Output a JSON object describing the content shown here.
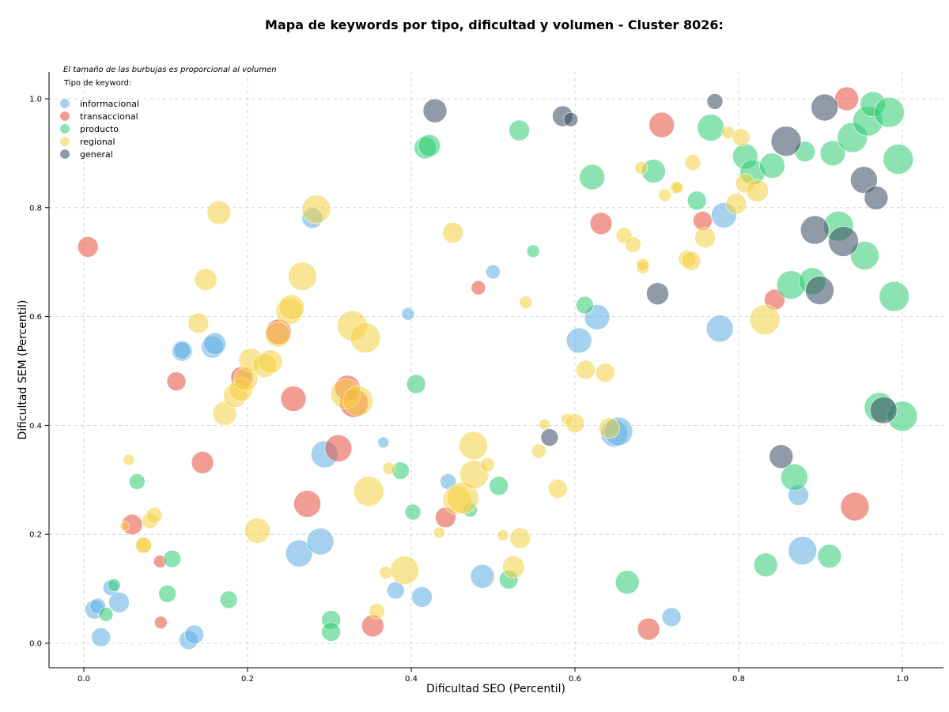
{
  "chart_data": {
    "type": "scatter",
    "title": "Mapa de keywords por tipo, dificultad y volumen - Cluster 8026:",
    "xlabel": "Dificultad SEO (Percentil)",
    "ylabel": "Dificultad SEM (Percentil)",
    "annotation": "El tamaño de las burbujas es proporcional al volumen",
    "legend_title": "Tipo de keyword:",
    "legend_position": "top-left",
    "grid": true,
    "xlim": [
      -0.045,
      1.05
    ],
    "ylim": [
      -0.045,
      1.05
    ],
    "xticks": [
      "0.0",
      "0.2",
      "0.4",
      "0.6",
      "0.8",
      "1.0"
    ],
    "yticks": [
      "0.0",
      "0.2",
      "0.4",
      "0.6",
      "0.8",
      "1.0"
    ],
    "colors": {
      "informacional": "#5dade2",
      "transaccional": "#e74c3c",
      "producto": "#2ecc71",
      "regional": "#f4d03f",
      "general": "#34495e"
    },
    "series": [
      {
        "name": "informacional",
        "points": [
          [
            0.013,
            0.062,
            12
          ],
          [
            0.017,
            0.068,
            10
          ],
          [
            0.021,
            0.011,
            12
          ],
          [
            0.033,
            0.102,
            10
          ],
          [
            0.043,
            0.075,
            13
          ],
          [
            0.12,
            0.537,
            13
          ],
          [
            0.12,
            0.538,
            11
          ],
          [
            0.157,
            0.544,
            14
          ],
          [
            0.16,
            0.55,
            14
          ],
          [
            0.128,
            0.006,
            12
          ],
          [
            0.135,
            0.016,
            12
          ],
          [
            0.263,
            0.165,
            17
          ],
          [
            0.279,
            0.781,
            13
          ],
          [
            0.289,
            0.187,
            17
          ],
          [
            0.294,
            0.347,
            17
          ],
          [
            0.366,
            0.369,
            7
          ],
          [
            0.381,
            0.097,
            11
          ],
          [
            0.396,
            0.605,
            8
          ],
          [
            0.413,
            0.085,
            13
          ],
          [
            0.445,
            0.297,
            10
          ],
          [
            0.487,
            0.123,
            15
          ],
          [
            0.5,
            0.682,
            9
          ],
          [
            0.605,
            0.556,
            16
          ],
          [
            0.627,
            0.599,
            16
          ],
          [
            0.648,
            0.385,
            17
          ],
          [
            0.653,
            0.389,
            18
          ],
          [
            0.718,
            0.048,
            12
          ],
          [
            0.777,
            0.578,
            17
          ],
          [
            0.782,
            0.786,
            16
          ],
          [
            0.873,
            0.272,
            13
          ],
          [
            0.878,
            0.17,
            18
          ]
        ]
      },
      {
        "name": "transaccional",
        "points": [
          [
            0.005,
            0.728,
            13
          ],
          [
            0.059,
            0.218,
            13
          ],
          [
            0.093,
            0.15,
            8
          ],
          [
            0.094,
            0.038,
            8
          ],
          [
            0.113,
            0.481,
            12
          ],
          [
            0.145,
            0.332,
            14
          ],
          [
            0.193,
            0.488,
            14
          ],
          [
            0.238,
            0.572,
            16
          ],
          [
            0.256,
            0.449,
            16
          ],
          [
            0.273,
            0.256,
            17
          ],
          [
            0.311,
            0.358,
            17
          ],
          [
            0.322,
            0.469,
            16
          ],
          [
            0.33,
            0.441,
            18
          ],
          [
            0.353,
            0.032,
            14
          ],
          [
            0.442,
            0.231,
            13
          ],
          [
            0.482,
            0.653,
            9
          ],
          [
            0.632,
            0.771,
            14
          ],
          [
            0.69,
            0.026,
            14
          ],
          [
            0.706,
            0.952,
            16
          ],
          [
            0.756,
            0.776,
            12
          ],
          [
            0.844,
            0.631,
            13
          ],
          [
            0.932,
            1.0,
            15
          ],
          [
            0.942,
            0.251,
            18
          ]
        ]
      },
      {
        "name": "producto",
        "points": [
          [
            0.027,
            0.053,
            9
          ],
          [
            0.037,
            0.107,
            8
          ],
          [
            0.065,
            0.297,
            10
          ],
          [
            0.102,
            0.091,
            11
          ],
          [
            0.108,
            0.155,
            11
          ],
          [
            0.177,
            0.08,
            11
          ],
          [
            0.302,
            0.043,
            12
          ],
          [
            0.302,
            0.021,
            12
          ],
          [
            0.387,
            0.317,
            11
          ],
          [
            0.402,
            0.241,
            10
          ],
          [
            0.406,
            0.476,
            12
          ],
          [
            0.417,
            0.91,
            14
          ],
          [
            0.422,
            0.914,
            14
          ],
          [
            0.472,
            0.245,
            9
          ],
          [
            0.507,
            0.289,
            12
          ],
          [
            0.519,
            0.117,
            12
          ],
          [
            0.532,
            0.942,
            13
          ],
          [
            0.549,
            0.72,
            8
          ],
          [
            0.612,
            0.621,
            11
          ],
          [
            0.621,
            0.856,
            16
          ],
          [
            0.664,
            0.112,
            15
          ],
          [
            0.696,
            0.867,
            15
          ],
          [
            0.749,
            0.813,
            12
          ],
          [
            0.766,
            0.947,
            17
          ],
          [
            0.808,
            0.894,
            16
          ],
          [
            0.817,
            0.865,
            16
          ],
          [
            0.833,
            0.144,
            15
          ],
          [
            0.841,
            0.877,
            16
          ],
          [
            0.864,
            0.658,
            18
          ],
          [
            0.868,
            0.305,
            17
          ],
          [
            0.881,
            0.903,
            13
          ],
          [
            0.89,
            0.665,
            17
          ],
          [
            0.911,
            0.16,
            15
          ],
          [
            0.915,
            0.9,
            16
          ],
          [
            0.922,
            0.766,
            19
          ],
          [
            0.939,
            0.929,
            19
          ],
          [
            0.954,
            0.712,
            18
          ],
          [
            0.958,
            0.959,
            19
          ],
          [
            0.964,
            0.99,
            16
          ],
          [
            0.972,
            0.433,
            19
          ],
          [
            0.984,
            0.975,
            19
          ],
          [
            0.99,
            0.637,
            19
          ],
          [
            0.995,
            0.889,
            19
          ],
          [
            1.0,
            0.417,
            19
          ]
        ]
      },
      {
        "name": "regional",
        "points": [
          [
            0.05,
            0.215,
            6
          ],
          [
            0.055,
            0.337,
            7
          ],
          [
            0.073,
            0.18,
            10
          ],
          [
            0.073,
            0.18,
            10
          ],
          [
            0.081,
            0.225,
            10
          ],
          [
            0.086,
            0.235,
            10
          ],
          [
            0.14,
            0.588,
            13
          ],
          [
            0.149,
            0.668,
            14
          ],
          [
            0.165,
            0.791,
            15
          ],
          [
            0.172,
            0.422,
            15
          ],
          [
            0.185,
            0.455,
            15
          ],
          [
            0.192,
            0.466,
            15
          ],
          [
            0.198,
            0.485,
            15
          ],
          [
            0.204,
            0.52,
            15
          ],
          [
            0.212,
            0.207,
            16
          ],
          [
            0.221,
            0.51,
            15
          ],
          [
            0.228,
            0.517,
            15
          ],
          [
            0.237,
            0.567,
            16
          ],
          [
            0.251,
            0.61,
            17
          ],
          [
            0.254,
            0.617,
            16
          ],
          [
            0.267,
            0.674,
            18
          ],
          [
            0.284,
            0.797,
            18
          ],
          [
            0.32,
            0.458,
            19
          ],
          [
            0.328,
            0.583,
            19
          ],
          [
            0.335,
            0.445,
            19
          ],
          [
            0.344,
            0.561,
            19
          ],
          [
            0.348,
            0.279,
            19
          ],
          [
            0.358,
            0.059,
            10
          ],
          [
            0.369,
            0.13,
            8
          ],
          [
            0.373,
            0.321,
            8
          ],
          [
            0.392,
            0.134,
            18
          ],
          [
            0.434,
            0.203,
            7
          ],
          [
            0.451,
            0.754,
            13
          ],
          [
            0.456,
            0.263,
            18
          ],
          [
            0.463,
            0.267,
            20
          ],
          [
            0.476,
            0.363,
            18
          ],
          [
            0.477,
            0.31,
            18
          ],
          [
            0.493,
            0.328,
            9
          ],
          [
            0.512,
            0.198,
            7
          ],
          [
            0.525,
            0.14,
            14
          ],
          [
            0.533,
            0.193,
            13
          ],
          [
            0.54,
            0.626,
            8
          ],
          [
            0.556,
            0.353,
            9
          ],
          [
            0.563,
            0.402,
            7
          ],
          [
            0.579,
            0.284,
            12
          ],
          [
            0.59,
            0.412,
            7
          ],
          [
            0.6,
            0.404,
            12
          ],
          [
            0.613,
            0.502,
            12
          ],
          [
            0.637,
            0.497,
            12
          ],
          [
            0.642,
            0.395,
            13
          ],
          [
            0.66,
            0.749,
            10
          ],
          [
            0.671,
            0.732,
            10
          ],
          [
            0.681,
            0.873,
            8
          ],
          [
            0.683,
            0.69,
            8
          ],
          [
            0.683,
            0.695,
            8
          ],
          [
            0.71,
            0.823,
            8
          ],
          [
            0.724,
            0.837,
            8
          ],
          [
            0.725,
            0.837,
            7
          ],
          [
            0.737,
            0.706,
            11
          ],
          [
            0.742,
            0.702,
            12
          ],
          [
            0.744,
            0.883,
            10
          ],
          [
            0.759,
            0.745,
            13
          ],
          [
            0.787,
            0.938,
            8
          ],
          [
            0.797,
            0.807,
            13
          ],
          [
            0.803,
            0.929,
            11
          ],
          [
            0.808,
            0.845,
            12
          ],
          [
            0.823,
            0.831,
            14
          ],
          [
            0.832,
            0.594,
            19
          ]
        ]
      },
      {
        "name": "general",
        "points": [
          [
            0.429,
            0.978,
            15
          ],
          [
            0.569,
            0.378,
            11
          ],
          [
            0.585,
            0.968,
            13
          ],
          [
            0.595,
            0.962,
            9
          ],
          [
            0.701,
            0.642,
            14
          ],
          [
            0.771,
            0.995,
            10
          ],
          [
            0.852,
            0.343,
            15
          ],
          [
            0.858,
            0.922,
            19
          ],
          [
            0.893,
            0.759,
            18
          ],
          [
            0.899,
            0.648,
            18
          ],
          [
            0.905,
            0.984,
            17
          ],
          [
            0.928,
            0.738,
            19
          ],
          [
            0.953,
            0.851,
            17
          ],
          [
            0.968,
            0.818,
            15
          ],
          [
            0.977,
            0.428,
            17
          ]
        ]
      }
    ]
  }
}
